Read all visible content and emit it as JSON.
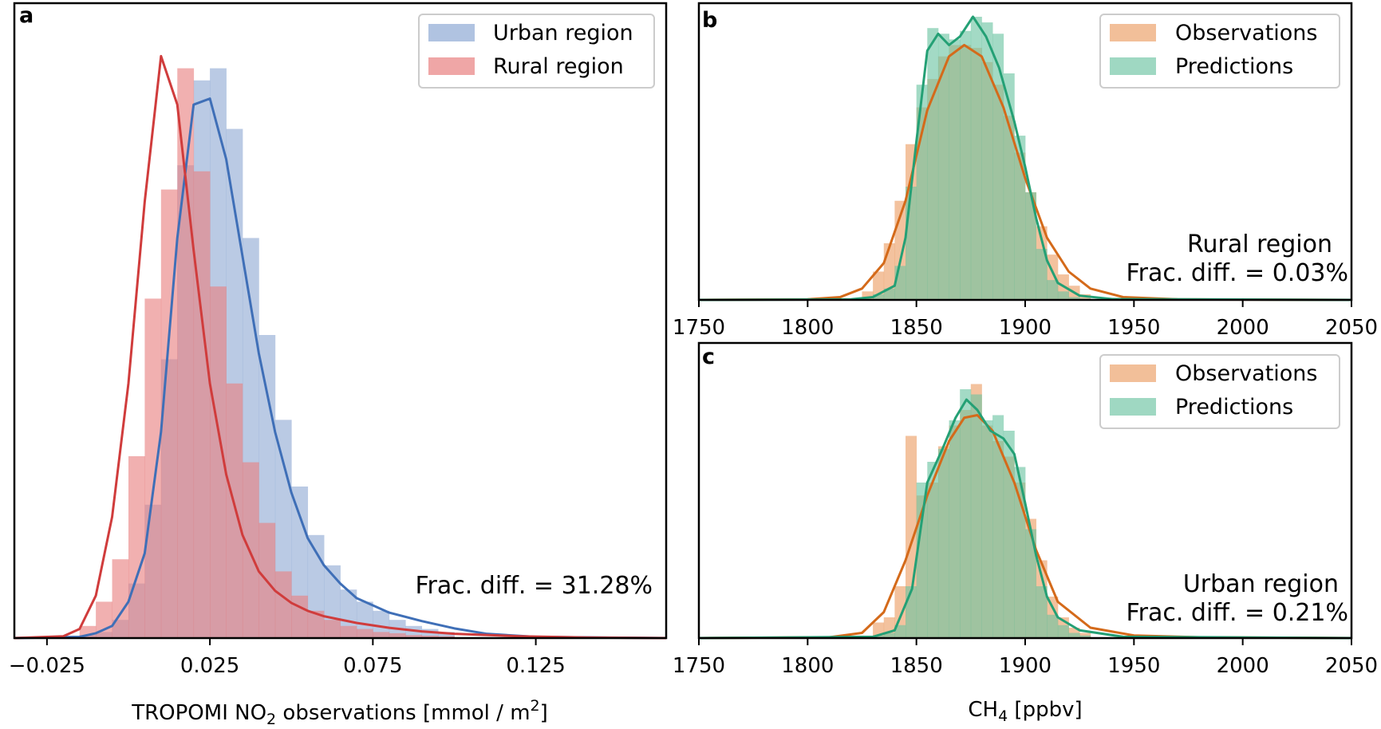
{
  "colors": {
    "urban_hist": "#8fa9d4",
    "rural_hist": "#e88080",
    "urban_line": "#3f6fb7",
    "rural_line": "#d03c3c",
    "obs_hist": "#eb9c63",
    "pred_hist": "#6bc3a2",
    "obs_line": "#d46a1a",
    "pred_line": "#24a075"
  },
  "chart_data": [
    {
      "panel": "a",
      "type": "histogram_kde",
      "xlabel_prefix": "TROPOMI NO",
      "xlabel_sub": "2",
      "xlabel_mid": " observations [mmol / m",
      "xlabel_sup": "2",
      "xlabel_suffix": "]",
      "xlim": [
        -0.035,
        0.165
      ],
      "ylim": [
        0,
        1
      ],
      "xticks": [
        -0.025,
        0.025,
        0.075,
        0.125
      ],
      "xtick_labels": [
        "−0.025",
        "0.025",
        "0.075",
        "0.125"
      ],
      "legend_position": "top-right",
      "annotation": "Frac. diff. = 31.28%",
      "bin_edges": [
        -0.015,
        -0.01,
        -0.005,
        0.0,
        0.005,
        0.01,
        0.015,
        0.02,
        0.025,
        0.03,
        0.035,
        0.04,
        0.045,
        0.05,
        0.055,
        0.06,
        0.065,
        0.07,
        0.075,
        0.08,
        0.085,
        0.09,
        0.095,
        0.1
      ],
      "series": [
        {
          "name": "Urban region",
          "hist": [
            0.005,
            0.01,
            0.03,
            0.09,
            0.22,
            0.46,
            0.78,
            0.92,
            0.94,
            0.84,
            0.66,
            0.5,
            0.36,
            0.25,
            0.17,
            0.12,
            0.08,
            0.06,
            0.045,
            0.03,
            0.02,
            0.015,
            0.01
          ],
          "kde_x": [
            -0.035,
            -0.015,
            -0.01,
            -0.005,
            0.0,
            0.005,
            0.01,
            0.015,
            0.02,
            0.025,
            0.03,
            0.035,
            0.04,
            0.045,
            0.05,
            0.055,
            0.06,
            0.065,
            0.07,
            0.08,
            0.09,
            0.1,
            0.11,
            0.125,
            0.165
          ],
          "kde_y": [
            0,
            0.002,
            0.008,
            0.02,
            0.06,
            0.14,
            0.34,
            0.66,
            0.88,
            0.89,
            0.79,
            0.63,
            0.47,
            0.34,
            0.24,
            0.165,
            0.12,
            0.09,
            0.066,
            0.042,
            0.028,
            0.016,
            0.007,
            0.002,
            0
          ]
        },
        {
          "name": "Rural region",
          "hist": [
            0.02,
            0.06,
            0.13,
            0.3,
            0.56,
            0.74,
            0.94,
            0.77,
            0.58,
            0.42,
            0.29,
            0.19,
            0.11,
            0.07,
            0.045,
            0.03,
            0.02,
            0.015,
            0.01,
            0.008,
            0.005,
            0.004,
            0.003
          ],
          "kde_x": [
            -0.035,
            -0.02,
            -0.015,
            -0.01,
            -0.005,
            0.0,
            0.005,
            0.01,
            0.015,
            0.02,
            0.025,
            0.03,
            0.035,
            0.04,
            0.045,
            0.05,
            0.055,
            0.06,
            0.07,
            0.08,
            0.09,
            0.1,
            0.12,
            0.14,
            0.165
          ],
          "kde_y": [
            0,
            0.003,
            0.015,
            0.07,
            0.2,
            0.42,
            0.72,
            0.96,
            0.88,
            0.64,
            0.42,
            0.27,
            0.17,
            0.11,
            0.078,
            0.058,
            0.045,
            0.036,
            0.025,
            0.017,
            0.011,
            0.007,
            0.003,
            0.001,
            0
          ]
        }
      ]
    },
    {
      "panel": "b",
      "type": "histogram_kde",
      "xlim": [
        1750,
        2050
      ],
      "ylim": [
        0,
        1
      ],
      "xticks": [
        1750,
        1800,
        1850,
        1900,
        1950,
        2000,
        2050
      ],
      "legend_position": "top-right",
      "region_label": "Rural region",
      "annotation": "Frac. diff. = 0.03%",
      "bin_edges": [
        1825,
        1830,
        1835,
        1840,
        1845,
        1850,
        1855,
        1860,
        1865,
        1870,
        1875,
        1880,
        1885,
        1890,
        1895,
        1900,
        1905,
        1910,
        1915,
        1920,
        1925,
        1930
      ],
      "series": [
        {
          "name": "Observations",
          "hist": [
            0.03,
            0.1,
            0.2,
            0.35,
            0.55,
            0.68,
            0.78,
            0.86,
            0.9,
            0.9,
            0.89,
            0.84,
            0.76,
            0.65,
            0.52,
            0.38,
            0.26,
            0.16,
            0.09,
            0.05,
            0.02
          ],
          "kde_x": [
            1750,
            1800,
            1815,
            1825,
            1835,
            1845,
            1855,
            1865,
            1872,
            1880,
            1890,
            1900,
            1910,
            1920,
            1930,
            1945,
            1970,
            2050
          ],
          "kde_y": [
            0,
            0.002,
            0.01,
            0.04,
            0.13,
            0.35,
            0.67,
            0.86,
            0.9,
            0.86,
            0.68,
            0.43,
            0.22,
            0.1,
            0.04,
            0.01,
            0.002,
            0
          ]
        },
        {
          "name": "Predictions",
          "hist": [
            0,
            0.02,
            0.04,
            0.12,
            0.4,
            0.76,
            0.96,
            0.94,
            0.92,
            0.95,
            1.0,
            0.98,
            0.94,
            0.8,
            0.58,
            0.38,
            0.18,
            0.07,
            0.03,
            0.01,
            0.005
          ],
          "kde_x": [
            1750,
            1820,
            1830,
            1840,
            1845,
            1850,
            1855,
            1860,
            1865,
            1870,
            1876,
            1882,
            1888,
            1895,
            1900,
            1905,
            1910,
            1915,
            1925,
            1940,
            2050
          ],
          "kde_y": [
            0,
            0.002,
            0.01,
            0.05,
            0.22,
            0.56,
            0.88,
            0.94,
            0.9,
            0.93,
            1.0,
            0.93,
            0.82,
            0.63,
            0.47,
            0.29,
            0.14,
            0.06,
            0.015,
            0.003,
            0
          ]
        }
      ]
    },
    {
      "panel": "c",
      "type": "histogram_kde",
      "xlabel": "CH",
      "xlabel_sub": "4",
      "xlabel_suffix": " [ppbv]",
      "xlim": [
        1750,
        2050
      ],
      "ylim": [
        0,
        1
      ],
      "xticks": [
        1750,
        1800,
        1850,
        1900,
        1950,
        2000,
        2050
      ],
      "legend_position": "top-right",
      "region_label": "Urban region",
      "annotation": "Frac. diff. = 0.21%",
      "bin_edges": [
        1830,
        1835,
        1840,
        1845,
        1850,
        1855,
        1860,
        1865,
        1870,
        1875,
        1880,
        1885,
        1890,
        1895,
        1900,
        1905,
        1910,
        1915,
        1920,
        1925,
        1930
      ],
      "series": [
        {
          "name": "Observations",
          "hist": [
            0.06,
            0.08,
            0.2,
            0.78,
            0.55,
            0.6,
            0.74,
            0.82,
            0.88,
            0.98,
            0.82,
            0.76,
            0.7,
            0.6,
            0.46,
            0.3,
            0.16,
            0.08,
            0.04,
            0.02
          ],
          "kde_x": [
            1750,
            1810,
            1825,
            1835,
            1845,
            1855,
            1865,
            1872,
            1878,
            1885,
            1895,
            1905,
            1915,
            1930,
            1950,
            1980,
            2050
          ],
          "kde_y": [
            0,
            0.003,
            0.02,
            0.1,
            0.3,
            0.55,
            0.76,
            0.85,
            0.86,
            0.8,
            0.6,
            0.34,
            0.14,
            0.04,
            0.01,
            0.003,
            0
          ]
        },
        {
          "name": "Predictions",
          "hist": [
            0.01,
            0.02,
            0.05,
            0.2,
            0.6,
            0.68,
            0.73,
            0.84,
            0.96,
            0.94,
            0.84,
            0.86,
            0.8,
            0.66,
            0.42,
            0.2,
            0.09,
            0.05,
            0.02,
            0.01
          ],
          "kde_x": [
            1750,
            1830,
            1840,
            1848,
            1855,
            1862,
            1868,
            1873,
            1878,
            1884,
            1890,
            1895,
            1900,
            1905,
            1910,
            1915,
            1925,
            1945,
            2050
          ],
          "kde_y": [
            0,
            0.005,
            0.03,
            0.19,
            0.6,
            0.73,
            0.85,
            0.92,
            0.88,
            0.8,
            0.77,
            0.71,
            0.52,
            0.32,
            0.16,
            0.08,
            0.03,
            0.005,
            0
          ]
        }
      ]
    }
  ]
}
